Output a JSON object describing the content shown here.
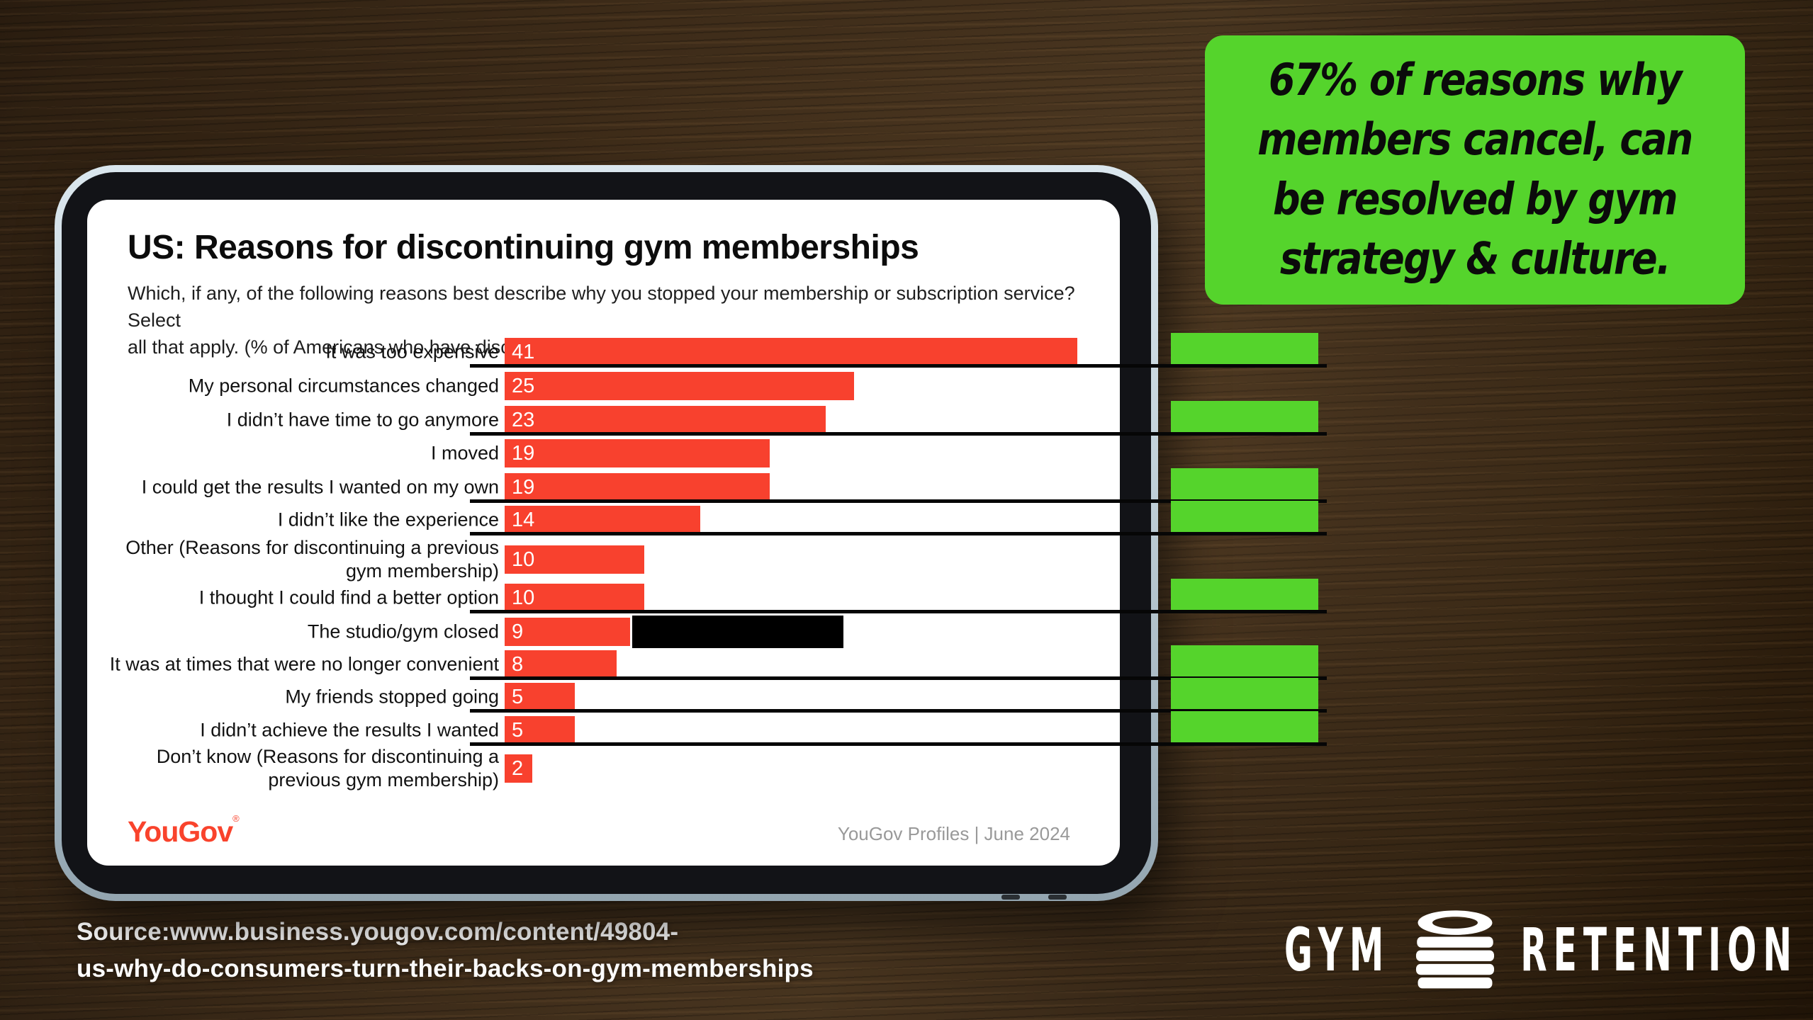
{
  "callout": {
    "text": "67% of reasons why\nmembers cancel, can\nbe resolved by gym\nstrategy & culture.",
    "bg_color": "#55d42c"
  },
  "chart": {
    "title": "US: Reasons for discontinuing gym memberships",
    "subtitle": "Which, if any, of the following reasons best describe why you stopped your membership or subscription service? Select\nall that apply. (% of Americans who have discontinued a gym membership",
    "brand": "YouGov",
    "brand_mark": "®",
    "footer": "YouGov Profiles | June 2024",
    "bar_color": "#f8412e",
    "value_text_color": "#ffffff"
  },
  "chart_data": {
    "type": "bar",
    "orientation": "horizontal",
    "title": "US: Reasons for discontinuing gym memberships",
    "unit": "% of Americans who have discontinued a gym membership",
    "categories": [
      "It was too expensive",
      "My personal circumstances changed",
      "I didn’t have time to go anymore",
      "I moved",
      "I could get the results I wanted on my own",
      "I didn’t like the experience",
      "Other (Reasons for discontinuing a previous\ngym membership)",
      "I thought I could find a better option",
      "The studio/gym closed",
      "It was at times that were no longer convenient",
      "My friends stopped going",
      "I didn’t achieve the results I wanted",
      "Don’t know (Reasons for discontinuing a\nprevious gym membership)"
    ],
    "values": [
      41,
      25,
      23,
      19,
      19,
      14,
      10,
      10,
      9,
      8,
      5,
      5,
      2
    ],
    "xlim": [
      0,
      41
    ],
    "grid": false,
    "legend": false,
    "highlight_indices": [
      0,
      2,
      4,
      5,
      7,
      9,
      10,
      11
    ],
    "highlight_color": "#55d42c",
    "annotations": {
      "redaction_next_to": "The studio/gym closed"
    }
  },
  "source": {
    "text": "Source:www.business.yougov.com/content/49804-\nus-why-do-consumers-turn-their-backs-on-gym-memberships"
  },
  "brand_logo": {
    "left": "GYM",
    "right": "RETENTION",
    "icon": "weight-plates-stack-icon"
  }
}
